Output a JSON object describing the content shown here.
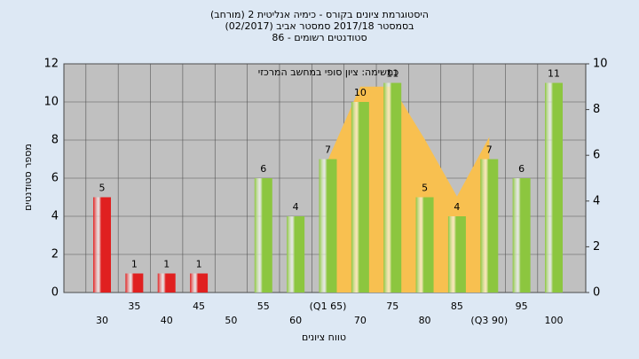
{
  "chart_data": {
    "type": "bar",
    "title": [
      "היסטוגרמת ציונים בקורס - כימיה אנליטית 2 (מורחב)",
      "בסמסטר 2017/18 סמסטר אביב (02/2017)",
      "סטודנטים רשומים - 86"
    ],
    "annotation": "כמשימה: ציון סופי במחשב המרכזי",
    "xlabel": "טווח ציונים",
    "ylabel": "מספר סטודנטים",
    "categories": [
      "30",
      "35",
      "40",
      "45",
      "50",
      "55",
      "60",
      "(Q1 65)",
      "70",
      "75",
      "80",
      "85",
      "(Q3 90)",
      "95",
      "100"
    ],
    "values": [
      5,
      1,
      1,
      1,
      0,
      6,
      4,
      7,
      10,
      11,
      5,
      4,
      7,
      6,
      11
    ],
    "colors": [
      "#e02020",
      "#e02020",
      "#e02020",
      "#e02020",
      "#e02020",
      "#8cc63f",
      "#8cc63f",
      "#8cc63f",
      "#8cc63f",
      "#8cc63f",
      "#8cc63f",
      "#8cc63f",
      "#8cc63f",
      "#8cc63f",
      "#8cc63f"
    ],
    "area": {
      "color": "#f8c050",
      "axis": "y2",
      "values": [
        null,
        null,
        null,
        null,
        null,
        null,
        null,
        5.8,
        9,
        9,
        6.7,
        4.2,
        6.8,
        null,
        null
      ]
    },
    "ylim": [
      0,
      12
    ],
    "yticks": [
      0,
      2,
      4,
      6,
      8,
      10,
      12
    ],
    "y2lim": [
      0,
      10
    ],
    "y2ticks": [
      0,
      2,
      4,
      6,
      8,
      10
    ],
    "grid": true
  }
}
